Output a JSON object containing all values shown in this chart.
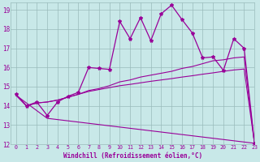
{
  "xlabel": "Windchill (Refroidissement éolien,°C)",
  "xlim": [
    -0.5,
    23
  ],
  "ylim": [
    12,
    19.4
  ],
  "yticks": [
    12,
    13,
    14,
    15,
    16,
    17,
    18,
    19
  ],
  "xticks": [
    0,
    1,
    2,
    3,
    4,
    5,
    6,
    7,
    8,
    9,
    10,
    11,
    12,
    13,
    14,
    15,
    16,
    17,
    18,
    19,
    20,
    21,
    22,
    23
  ],
  "bg_color": "#c8e8e8",
  "line_color": "#990099",
  "grid_color": "#99bbbb",
  "line1_x": [
    0,
    1,
    2,
    3,
    4,
    5,
    6,
    7,
    8,
    9,
    10,
    11,
    12,
    13,
    14,
    15,
    16,
    17,
    18,
    19,
    20,
    21,
    22,
    23
  ],
  "line1_y": [
    14.6,
    14.0,
    14.2,
    13.5,
    14.2,
    14.5,
    14.7,
    16.0,
    15.95,
    15.9,
    18.4,
    17.5,
    18.6,
    17.4,
    18.8,
    19.25,
    18.5,
    17.8,
    16.5,
    16.55,
    15.85,
    17.5,
    17.0,
    12.05
  ],
  "line2_x": [
    0,
    1,
    2,
    3,
    4,
    5,
    6,
    7,
    8,
    9,
    10,
    11,
    12,
    13,
    14,
    15,
    16,
    17,
    18,
    19,
    20,
    21,
    22,
    23
  ],
  "line2_y": [
    14.55,
    14.0,
    14.15,
    14.2,
    14.3,
    14.45,
    14.6,
    14.8,
    14.9,
    15.05,
    15.25,
    15.35,
    15.5,
    15.6,
    15.7,
    15.8,
    15.95,
    16.05,
    16.2,
    16.35,
    16.4,
    16.5,
    16.55,
    12.05
  ],
  "line3_x": [
    0,
    1,
    2,
    3,
    4,
    5,
    6,
    7,
    8,
    9,
    10,
    11,
    12,
    13,
    14,
    15,
    16,
    17,
    18,
    19,
    20,
    21,
    22,
    23
  ],
  "line3_y": [
    14.55,
    14.0,
    14.15,
    14.2,
    14.3,
    14.45,
    14.6,
    14.75,
    14.85,
    14.95,
    15.05,
    15.12,
    15.2,
    15.28,
    15.35,
    15.42,
    15.5,
    15.57,
    15.65,
    15.72,
    15.8,
    15.87,
    15.92,
    12.05
  ],
  "line4_x": [
    0,
    3,
    23
  ],
  "line4_y": [
    14.55,
    13.35,
    12.05
  ]
}
